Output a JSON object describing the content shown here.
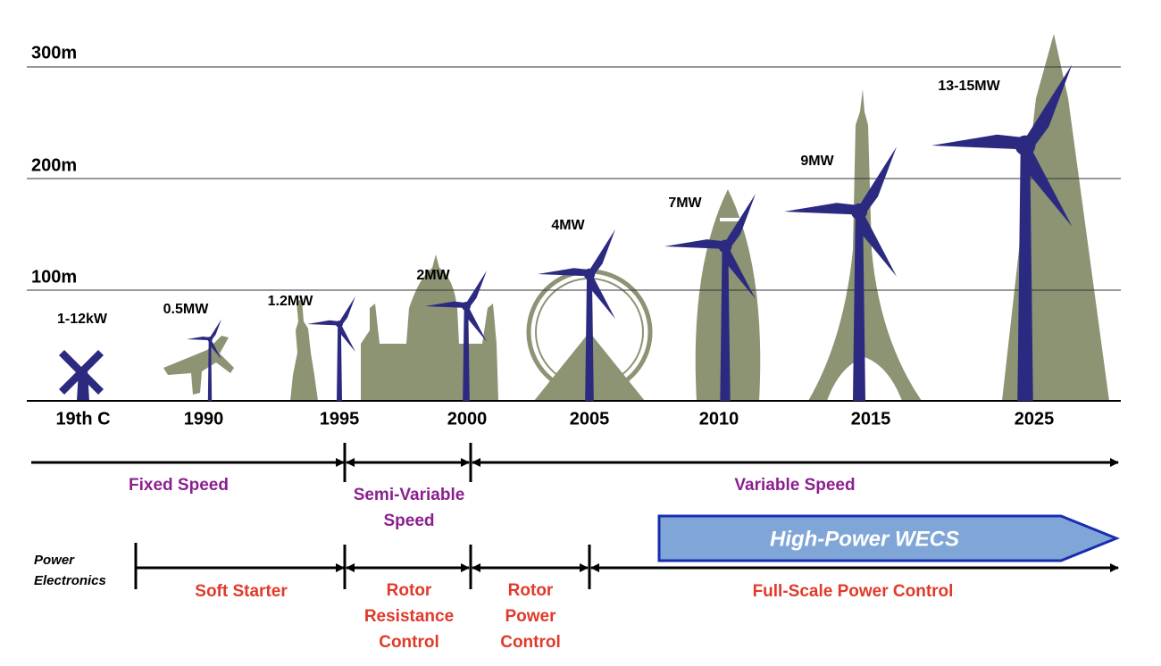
{
  "height_labels": [
    "300m",
    "200m",
    "100m"
  ],
  "eras": [
    {
      "year": "19th C",
      "power": "1-12kW"
    },
    {
      "year": "1990",
      "power": "0.5MW"
    },
    {
      "year": "1995",
      "power": "1.2MW"
    },
    {
      "year": "2000",
      "power": "2MW"
    },
    {
      "year": "2005",
      "power": "4MW"
    },
    {
      "year": "2010",
      "power": "7MW"
    },
    {
      "year": "2015",
      "power": "9MW"
    },
    {
      "year": "2025",
      "power": "13-15MW"
    }
  ],
  "speed_control": [
    [
      "Fixed Speed"
    ],
    [
      "Semi-Variable",
      "Speed"
    ],
    [
      "Variable Speed"
    ]
  ],
  "power_electronics": {
    "title": [
      "Power",
      "Electronics"
    ],
    "segments": [
      [
        "Soft Starter"
      ],
      [
        "Rotor",
        "Resistance",
        "Control"
      ],
      [
        "Rotor",
        "Power",
        "Control"
      ],
      [
        "Full-Scale Power Control"
      ]
    ]
  },
  "banner": "High-Power WECS"
}
